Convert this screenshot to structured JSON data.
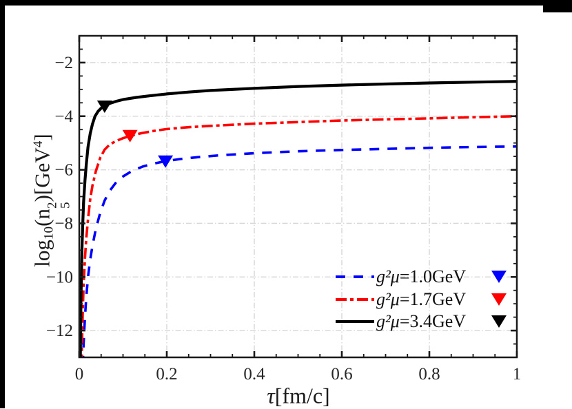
{
  "figure": {
    "background": "#ffffff",
    "frame_color": "#000000"
  },
  "chart_data": {
    "type": "line",
    "title": "",
    "grid": true,
    "legend_position": "lower right",
    "styles": {
      "grid_color": "#d9d9d9",
      "axis_color": "#1a1a1a",
      "text_color": "#262626",
      "blue": "#0000ff",
      "red": "#ff0000",
      "black": "#000000"
    },
    "x_axis": {
      "label": "τ[fm/c]",
      "label_parts": [
        {
          "s": "i",
          "t": "τ"
        },
        {
          "s": "n",
          "t": "[fm/c]"
        }
      ],
      "lim": [
        0,
        1
      ],
      "major_ticks": [
        0,
        0.2,
        0.4,
        0.6,
        0.8,
        1
      ],
      "tick_labels": [
        "0",
        "0.2",
        "0.4",
        "0.6",
        "0.8",
        "1"
      ],
      "minor_step": 0.05,
      "grid_lines": [
        0.2,
        0.4,
        0.6,
        0.8
      ]
    },
    "y_axis": {
      "label": "log₁₀(n₅²)[GeV⁴]",
      "label_parts": [
        {
          "s": "n",
          "t": "log"
        },
        {
          "s": "sub",
          "t": "10"
        },
        {
          "s": "n",
          "t": "(n"
        },
        {
          "s": "stack",
          "sup": "2",
          "sub": "5"
        },
        {
          "s": "n",
          "t": ")[GeV"
        },
        {
          "s": "sup",
          "t": "4"
        },
        {
          "s": "n",
          "t": "]"
        }
      ],
      "lim": [
        -13,
        -1
      ],
      "major_ticks": [
        -2,
        -4,
        -6,
        -8,
        -10,
        -12
      ],
      "tick_labels": [
        "−2",
        "−4",
        "−6",
        "−8",
        "−10",
        "−12"
      ],
      "minor_step": 0.5,
      "grid_lines": [
        -2,
        -4,
        -6,
        -8,
        -10,
        -12
      ]
    },
    "series": [
      {
        "name": "g²μ=1.0GeV",
        "label_math": "g²μ",
        "label_rest": "=1.0GeV",
        "color": "#0000ff",
        "dash": "14 12",
        "width": 3.6,
        "marker": {
          "shape": "triangle-down",
          "x": 0.197,
          "y": -5.67
        },
        "points": [
          [
            0.008,
            -13.3
          ],
          [
            0.01,
            -12.5
          ],
          [
            0.013,
            -11.5
          ],
          [
            0.016,
            -10.75
          ],
          [
            0.02,
            -10.0
          ],
          [
            0.025,
            -9.35
          ],
          [
            0.03,
            -8.85
          ],
          [
            0.038,
            -8.2
          ],
          [
            0.048,
            -7.6
          ],
          [
            0.058,
            -7.15
          ],
          [
            0.07,
            -6.78
          ],
          [
            0.085,
            -6.45
          ],
          [
            0.1,
            -6.25
          ],
          [
            0.12,
            -6.05
          ],
          [
            0.145,
            -5.88
          ],
          [
            0.17,
            -5.77
          ],
          [
            0.197,
            -5.68
          ],
          [
            0.23,
            -5.6
          ],
          [
            0.27,
            -5.53
          ],
          [
            0.32,
            -5.46
          ],
          [
            0.4,
            -5.38
          ],
          [
            0.5,
            -5.31
          ],
          [
            0.6,
            -5.26
          ],
          [
            0.7,
            -5.22
          ],
          [
            0.8,
            -5.18
          ],
          [
            0.9,
            -5.15
          ],
          [
            1.0,
            -5.13
          ]
        ]
      },
      {
        "name": "g²μ=1.7GeV",
        "label_math": "g²μ",
        "label_rest": "=1.7GeV",
        "color": "#ff0000",
        "dash": "16 5 5 5",
        "width": 3.6,
        "marker": {
          "shape": "triangle-down",
          "x": 0.116,
          "y": -4.72
        },
        "points": [
          [
            0.005,
            -13.3
          ],
          [
            0.006,
            -12.6
          ],
          [
            0.008,
            -11.3
          ],
          [
            0.01,
            -10.3
          ],
          [
            0.013,
            -9.3
          ],
          [
            0.016,
            -8.55
          ],
          [
            0.02,
            -7.85
          ],
          [
            0.025,
            -7.1
          ],
          [
            0.03,
            -6.6
          ],
          [
            0.038,
            -6.05
          ],
          [
            0.048,
            -5.55
          ],
          [
            0.058,
            -5.25
          ],
          [
            0.07,
            -5.05
          ],
          [
            0.085,
            -4.92
          ],
          [
            0.1,
            -4.82
          ],
          [
            0.116,
            -4.74
          ],
          [
            0.14,
            -4.64
          ],
          [
            0.17,
            -4.55
          ],
          [
            0.2,
            -4.48
          ],
          [
            0.25,
            -4.41
          ],
          [
            0.3,
            -4.36
          ],
          [
            0.4,
            -4.28
          ],
          [
            0.5,
            -4.22
          ],
          [
            0.6,
            -4.16
          ],
          [
            0.7,
            -4.12
          ],
          [
            0.8,
            -4.08
          ],
          [
            0.9,
            -4.04
          ],
          [
            1.0,
            -4.0
          ]
        ]
      },
      {
        "name": "g²μ=3.4GeV",
        "label_math": "g²μ",
        "label_rest": "=3.4GeV",
        "color": "#000000",
        "dash": "",
        "width": 4.2,
        "marker": {
          "shape": "triangle-down",
          "x": 0.058,
          "y": -3.62
        },
        "points": [
          [
            0.002,
            -13.5
          ],
          [
            0.0025,
            -13.0
          ],
          [
            0.003,
            -12.2
          ],
          [
            0.004,
            -10.8
          ],
          [
            0.005,
            -9.9
          ],
          [
            0.0063,
            -8.9
          ],
          [
            0.008,
            -8.0
          ],
          [
            0.01,
            -7.2
          ],
          [
            0.013,
            -6.4
          ],
          [
            0.016,
            -5.8
          ],
          [
            0.02,
            -5.15
          ],
          [
            0.025,
            -4.65
          ],
          [
            0.03,
            -4.3
          ],
          [
            0.036,
            -4.0
          ],
          [
            0.043,
            -3.82
          ],
          [
            0.05,
            -3.7
          ],
          [
            0.058,
            -3.62
          ],
          [
            0.07,
            -3.52
          ],
          [
            0.085,
            -3.44
          ],
          [
            0.1,
            -3.38
          ],
          [
            0.13,
            -3.3
          ],
          [
            0.16,
            -3.24
          ],
          [
            0.2,
            -3.17
          ],
          [
            0.25,
            -3.1
          ],
          [
            0.3,
            -3.04
          ],
          [
            0.4,
            -2.96
          ],
          [
            0.5,
            -2.89
          ],
          [
            0.6,
            -2.84
          ],
          [
            0.7,
            -2.8
          ],
          [
            0.8,
            -2.76
          ],
          [
            0.9,
            -2.73
          ],
          [
            1.0,
            -2.7
          ]
        ]
      }
    ]
  }
}
